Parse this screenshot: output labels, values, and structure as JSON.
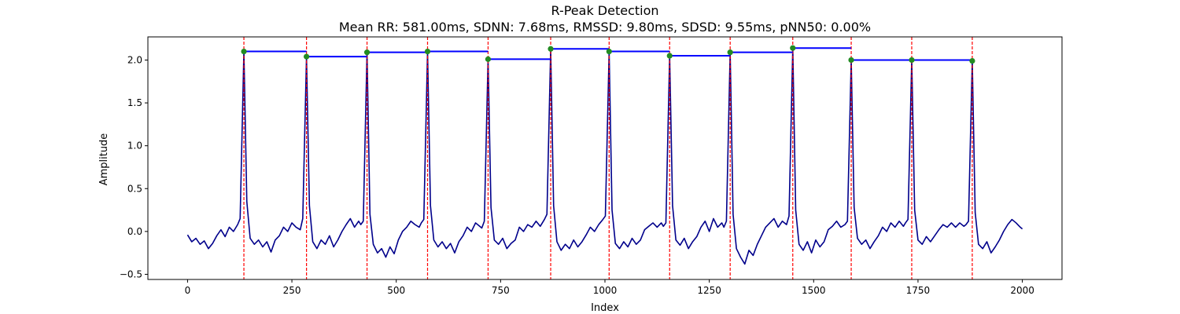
{
  "chart_data": {
    "type": "line",
    "title": "R-Peak Detection",
    "subtitle": "Mean RR: 581.00ms, SDNN: 7.68ms, RMSSD: 9.80ms, SDSD: 9.55ms, pNN50: 0.00%",
    "xlabel": "Index",
    "ylabel": "Amplitude",
    "xlim": [
      -95,
      2095
    ],
    "ylim": [
      -0.56,
      2.27
    ],
    "xticks": [
      0,
      250,
      500,
      750,
      1000,
      1250,
      1500,
      1750,
      2000
    ],
    "xtick_labels": [
      "0",
      "250",
      "500",
      "750",
      "1000",
      "1250",
      "1500",
      "1750",
      "2000"
    ],
    "yticks": [
      -0.5,
      0.0,
      0.5,
      1.0,
      1.5,
      2.0
    ],
    "ytick_labels": [
      "−0.5",
      "0.0",
      "0.5",
      "1.0",
      "1.5",
      "2.0"
    ],
    "grid": false,
    "colors": {
      "signal": "#00008b",
      "peak_marker": "#228b22",
      "peak_line": "#ff0000",
      "rr_segment": "#0000ff"
    },
    "r_peaks": [
      {
        "x": 135,
        "y": 2.1
      },
      {
        "x": 285,
        "y": 2.04
      },
      {
        "x": 430,
        "y": 2.09
      },
      {
        "x": 575,
        "y": 2.1
      },
      {
        "x": 720,
        "y": 2.01
      },
      {
        "x": 870,
        "y": 2.13
      },
      {
        "x": 1010,
        "y": 2.1
      },
      {
        "x": 1155,
        "y": 2.05
      },
      {
        "x": 1300,
        "y": 2.09
      },
      {
        "x": 1450,
        "y": 2.14
      },
      {
        "x": 1590,
        "y": 2.0
      },
      {
        "x": 1735,
        "y": 2.0
      },
      {
        "x": 1880,
        "y": 1.99
      }
    ],
    "rr_segments": [
      {
        "x_start": 135,
        "x_end": 285,
        "y": 2.1
      },
      {
        "x_start": 285,
        "x_end": 430,
        "y": 2.04
      },
      {
        "x_start": 430,
        "x_end": 575,
        "y": 2.09
      },
      {
        "x_start": 575,
        "x_end": 720,
        "y": 2.1
      },
      {
        "x_start": 720,
        "x_end": 870,
        "y": 2.01
      },
      {
        "x_start": 870,
        "x_end": 1010,
        "y": 2.13
      },
      {
        "x_start": 1010,
        "x_end": 1155,
        "y": 2.1
      },
      {
        "x_start": 1155,
        "x_end": 1300,
        "y": 2.05
      },
      {
        "x_start": 1300,
        "x_end": 1450,
        "y": 2.09
      },
      {
        "x_start": 1450,
        "x_end": 1590,
        "y": 2.14
      },
      {
        "x_start": 1590,
        "x_end": 1735,
        "y": 2.0
      },
      {
        "x_start": 1735,
        "x_end": 1880,
        "y": 2.0
      }
    ],
    "series": [
      {
        "x": [
          0,
          10,
          20,
          30,
          40,
          50,
          60,
          70,
          80,
          90,
          100,
          110,
          120,
          126,
          135,
          142,
          150,
          160,
          170,
          180,
          190,
          200,
          210,
          220,
          230,
          240,
          250,
          260,
          270,
          276,
          285,
          292,
          300,
          310,
          320,
          330,
          340,
          350,
          360,
          370,
          380,
          390,
          400,
          410,
          415,
          421,
          430,
          437,
          445,
          455,
          465,
          475,
          485,
          495,
          505,
          515,
          525,
          535,
          545,
          555,
          560,
          566,
          575,
          582,
          590,
          600,
          610,
          620,
          630,
          640,
          650,
          660,
          670,
          680,
          690,
          700,
          705,
          711,
          720,
          727,
          735,
          745,
          755,
          765,
          775,
          785,
          795,
          805,
          815,
          825,
          835,
          845,
          855,
          861,
          870,
          877,
          885,
          895,
          905,
          915,
          925,
          935,
          945,
          955,
          965,
          975,
          985,
          995,
          1001,
          1010,
          1017,
          1025,
          1035,
          1045,
          1055,
          1065,
          1075,
          1085,
          1095,
          1105,
          1115,
          1125,
          1135,
          1140,
          1146,
          1155,
          1162,
          1170,
          1180,
          1190,
          1200,
          1210,
          1220,
          1230,
          1240,
          1250,
          1260,
          1270,
          1280,
          1285,
          1291,
          1300,
          1307,
          1315,
          1325,
          1335,
          1345,
          1355,
          1365,
          1375,
          1385,
          1395,
          1405,
          1415,
          1425,
          1435,
          1441,
          1450,
          1457,
          1465,
          1475,
          1485,
          1495,
          1505,
          1515,
          1525,
          1535,
          1545,
          1555,
          1565,
          1575,
          1581,
          1590,
          1597,
          1605,
          1615,
          1625,
          1635,
          1645,
          1655,
          1665,
          1675,
          1685,
          1695,
          1705,
          1715,
          1720,
          1726,
          1735,
          1742,
          1750,
          1760,
          1770,
          1780,
          1790,
          1800,
          1810,
          1820,
          1830,
          1840,
          1850,
          1860,
          1865,
          1871,
          1880,
          1887,
          1895,
          1905,
          1915,
          1925,
          1935,
          1945,
          1955,
          1965,
          1975,
          1985,
          1995,
          2000
        ],
        "y": [
          -0.04,
          -0.12,
          -0.08,
          -0.15,
          -0.11,
          -0.2,
          -0.14,
          -0.05,
          0.02,
          -0.06,
          0.05,
          0.0,
          0.08,
          0.15,
          2.1,
          0.35,
          -0.08,
          -0.15,
          -0.1,
          -0.18,
          -0.12,
          -0.24,
          -0.1,
          -0.05,
          0.05,
          0.0,
          0.1,
          0.05,
          0.02,
          0.15,
          2.04,
          0.3,
          -0.12,
          -0.2,
          -0.1,
          -0.15,
          -0.05,
          -0.18,
          -0.1,
          0.0,
          0.08,
          0.15,
          0.05,
          0.12,
          0.08,
          0.12,
          2.09,
          0.2,
          -0.15,
          -0.25,
          -0.2,
          -0.3,
          -0.18,
          -0.26,
          -0.1,
          0.0,
          0.05,
          0.12,
          0.08,
          0.05,
          0.1,
          0.14,
          2.1,
          0.3,
          -0.1,
          -0.18,
          -0.12,
          -0.2,
          -0.14,
          -0.25,
          -0.12,
          -0.05,
          0.05,
          0.0,
          0.1,
          0.06,
          0.04,
          0.12,
          2.01,
          0.28,
          -0.1,
          -0.15,
          -0.08,
          -0.2,
          -0.14,
          -0.1,
          0.05,
          0.0,
          0.08,
          0.05,
          0.12,
          0.06,
          0.14,
          0.2,
          2.13,
          0.3,
          -0.12,
          -0.22,
          -0.15,
          -0.2,
          -0.1,
          -0.18,
          -0.12,
          -0.04,
          0.05,
          0.0,
          0.08,
          0.14,
          0.18,
          2.1,
          0.25,
          -0.14,
          -0.2,
          -0.12,
          -0.18,
          -0.08,
          -0.15,
          -0.1,
          0.02,
          0.06,
          0.1,
          0.05,
          0.1,
          0.06,
          0.1,
          2.05,
          0.3,
          -0.1,
          -0.16,
          -0.08,
          -0.2,
          -0.12,
          -0.06,
          0.05,
          0.12,
          0.0,
          0.15,
          0.05,
          0.1,
          0.05,
          0.12,
          2.09,
          0.2,
          -0.2,
          -0.3,
          -0.38,
          -0.22,
          -0.28,
          -0.15,
          -0.05,
          0.05,
          0.1,
          0.15,
          0.05,
          0.12,
          0.08,
          0.18,
          2.14,
          0.25,
          -0.15,
          -0.22,
          -0.12,
          -0.25,
          -0.1,
          -0.18,
          -0.12,
          0.02,
          0.06,
          0.12,
          0.05,
          0.08,
          0.12,
          2.0,
          0.28,
          -0.08,
          -0.15,
          -0.1,
          -0.2,
          -0.12,
          -0.05,
          0.05,
          0.0,
          0.1,
          0.05,
          0.12,
          0.06,
          0.1,
          0.14,
          2.0,
          0.25,
          -0.1,
          -0.15,
          -0.06,
          -0.12,
          -0.05,
          0.02,
          0.08,
          0.05,
          0.1,
          0.05,
          0.1,
          0.06,
          0.08,
          0.12,
          1.99,
          0.22,
          -0.15,
          -0.2,
          -0.12,
          -0.25,
          -0.18,
          -0.1,
          0.0,
          0.08,
          0.14,
          0.1,
          0.05,
          0.03
        ]
      }
    ]
  }
}
